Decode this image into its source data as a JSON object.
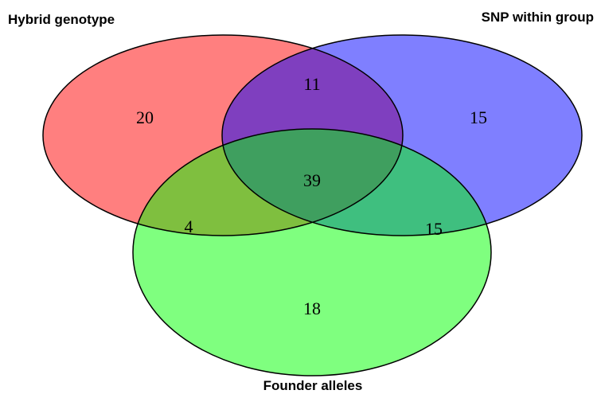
{
  "sets": [
    {
      "label": "Hybrid genotype",
      "color": "#ff0000"
    },
    {
      "label": "SNP within group",
      "color": "#0000ff"
    },
    {
      "label": "Founder alleles",
      "color": "#00ff00"
    }
  ],
  "regions": [
    20,
    11,
    15,
    4,
    39,
    15,
    18
  ]
}
